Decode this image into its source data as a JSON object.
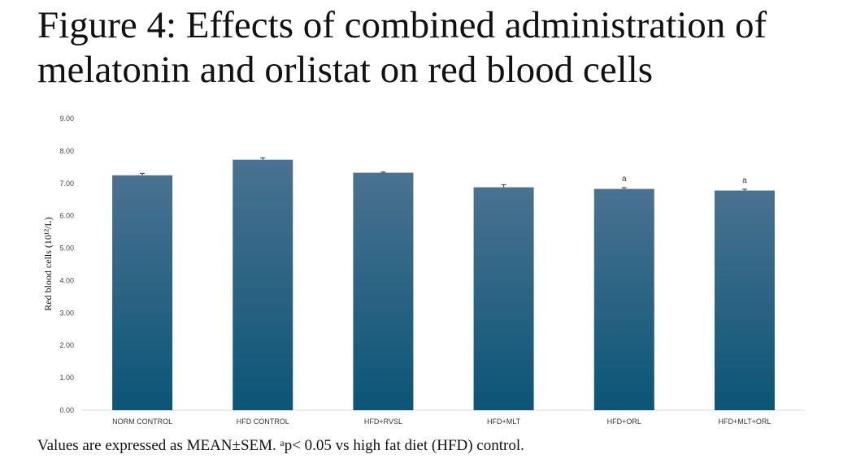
{
  "title": "Figure 4: Effects of combined administration of melatonin and orlistat on red blood cells",
  "caption": "Values are expressed as MEAN±SEM. ᵃp< 0.05 vs high fat diet (HFD) control.",
  "chart_data": {
    "type": "bar",
    "categories": [
      "NORM CONTROL",
      "HFD CONTROL",
      "HFD+RVSL",
      "HFD+MLT",
      "HFD+ORL",
      "HFD+MLT+ORL"
    ],
    "values": [
      7.25,
      7.73,
      7.33,
      6.88,
      6.83,
      6.78
    ],
    "errors": [
      0.06,
      0.06,
      0.02,
      0.08,
      0.04,
      0.04
    ],
    "significance": [
      "",
      "",
      "",
      "",
      "a",
      "a"
    ],
    "ylabel": "Red blood cells (10¹²/L)",
    "ylim": [
      0,
      9
    ],
    "yticks": [
      "0.00",
      "1.00",
      "2.00",
      "3.00",
      "4.00",
      "5.00",
      "6.00",
      "7.00",
      "8.00",
      "9.00"
    ],
    "grid": false,
    "bar_color_top": "#4a7290",
    "bar_color_bottom": "#0b5577"
  }
}
